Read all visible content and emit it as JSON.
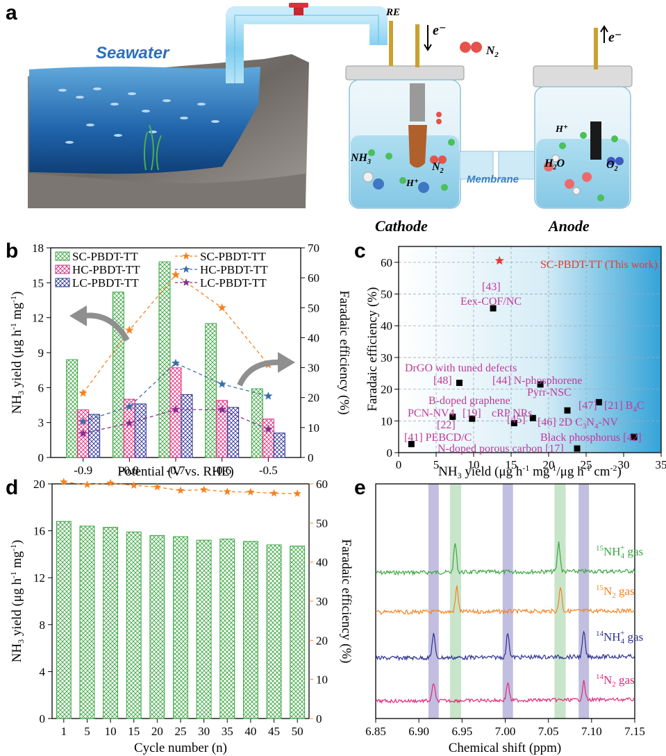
{
  "panel_labels": [
    "a",
    "b",
    "c",
    "d",
    "e"
  ],
  "schematic": {
    "seawater": "Seawater",
    "re": "RE",
    "e_in": "e⁻",
    "e_out": "e⁻",
    "n2_top": "N",
    "n2_top_sub": "2",
    "nh3": "NH",
    "nh3_sub": "3",
    "n2_mid": "N",
    "n2_mid_sub": "2",
    "h_plus_cathode": "H⁺",
    "membrane": "Membrane",
    "h_plus_anode": "H⁺",
    "h2o": "H",
    "h2o_sub": "2",
    "h2o_end": "O",
    "o2": "O",
    "o2_sub": "2",
    "cathode": "Cathode",
    "anode": "Anode"
  },
  "chart_data": [
    {
      "id": "b",
      "type": "bar",
      "categories": [
        "-0.9",
        "-0.8",
        "-0.7",
        "-0.6",
        "-0.5"
      ],
      "series": [
        {
          "name": "SC-PBDT-TT",
          "values": [
            8.4,
            14.2,
            16.8,
            11.5,
            5.9
          ],
          "color": "#3aa640"
        },
        {
          "name": "HC-PBDT-TT",
          "values": [
            4.1,
            5.0,
            7.7,
            4.9,
            3.3
          ],
          "color": "#e0287c"
        },
        {
          "name": "LC-PBDT-TT",
          "values": [
            3.7,
            4.6,
            5.4,
            4.3,
            2.1
          ],
          "color": "#2e3192"
        }
      ],
      "line_series": [
        {
          "name": "SC-PBDT-TT",
          "values": [
            21.5,
            42.5,
            61,
            50,
            31
          ],
          "color": "#f58220"
        },
        {
          "name": "HC-PBDT-TT",
          "values": [
            12,
            17,
            31.5,
            24.5,
            20.5
          ],
          "color": "#3a6fa8"
        },
        {
          "name": "LC-PBDT-TT",
          "values": [
            8,
            11.5,
            16,
            16,
            9.5
          ],
          "color": "#8a2e8f"
        }
      ],
      "xlabel": "Potential (V vs. RHE)",
      "ylabel": "NH3 yield (μg h⁻¹ mg⁻¹)",
      "ylabel_parts": [
        "NH",
        "3",
        " yield (μg h",
        "-1",
        " mg",
        "-1",
        ")"
      ],
      "y2label": "Faradaic efficiency (%)",
      "ylim": [
        0,
        18
      ],
      "yticks": [
        "0",
        "3",
        "6",
        "9",
        "12",
        "15",
        "18"
      ],
      "y2lim": [
        0,
        70
      ],
      "y2ticks": [
        "0",
        "10",
        "20",
        "30",
        "40",
        "50",
        "60",
        "70"
      ]
    },
    {
      "id": "c",
      "type": "scatter",
      "x": [
        1.7,
        7.2,
        8.1,
        9.8,
        12.6,
        15.4,
        17.9,
        18.9,
        22.5,
        23.8,
        26.7,
        31.4,
        12.8
      ],
      "y": [
        2.7,
        11.3,
        22.0,
        10.7,
        45.5,
        9.3,
        10.9,
        21.5,
        13.3,
        1.3,
        15.9,
        5.0,
        60.5
      ],
      "xlabel": "NH3 yield (μg h⁻¹ mg⁻¹/μg h⁻¹ cm⁻²)",
      "xlabel_parts": [
        "NH",
        "3",
        " yield (μg h",
        "-1",
        " mg",
        "-1",
        "/μg h",
        "-1",
        " cm",
        "-2",
        ")"
      ],
      "ylabel": "Faradaic efficiency (%)",
      "xlim": [
        0,
        35
      ],
      "xticks": [
        "0",
        "5",
        "10",
        "15",
        "20",
        "25",
        "30",
        "35"
      ],
      "ylim": [
        0,
        65
      ],
      "yticks": [
        "0",
        "10",
        "20",
        "30",
        "40",
        "50",
        "60"
      ],
      "labels": {
        "this_work": "SC-PBDT-TT (This work)",
        "ref43": "[43]",
        "eexcof": "Eex-COF/NC",
        "drgo": "DrGO with tuned defects",
        "ref48": "[48]",
        "nphos": "[44] N-phosphorene",
        "bdoped": "B-doped graphene",
        "pyrr": "Pyrr-NSC",
        "pcn": "PCN-NV4",
        "ref19": "[19]",
        "crp": "cRP NRs",
        "ref47": "[47]",
        "b4c": "[21] B",
        "b4c_sub": "4",
        "b4c_end": "C",
        "ref22": "[22]",
        "ref45": "[45]",
        "c3n4": "[46] 2D C",
        "c3n4_s1": "3",
        "c3n4_m": "N",
        "c3n4_s2": "4",
        "c3n4_end": "-NV",
        "pebcd": "[41] PEBCD/C",
        "bp": "Black phosphorus [42]",
        "npc": "N-doped porous carbon [17]"
      }
    },
    {
      "id": "d",
      "type": "bar",
      "categories": [
        "1",
        "5",
        "10",
        "15",
        "20",
        "25",
        "30",
        "35",
        "40",
        "45",
        "50"
      ],
      "values": [
        16.8,
        16.4,
        16.3,
        15.9,
        15.6,
        15.5,
        15.2,
        15.3,
        15.1,
        14.8,
        14.7
      ],
      "line_values": [
        60.5,
        59.8,
        60.2,
        59.6,
        59.2,
        58.3,
        58.5,
        58.0,
        57.9,
        57.6,
        57.5
      ],
      "xlabel": "Cycle number (n)",
      "ylabel": "NH3 yield (μg h⁻¹ mg⁻¹)",
      "ylabel_parts": [
        "NH",
        "3",
        " yield (μg h",
        "-1",
        " mg",
        "-1",
        ")"
      ],
      "y2label": "Faradaic efficiency (%)",
      "ylim": [
        0,
        20
      ],
      "yticks": [
        "0",
        "4",
        "8",
        "12",
        "16",
        "20"
      ],
      "y2lim": [
        0,
        60
      ],
      "y2ticks": [
        "0",
        "10",
        "20",
        "30",
        "40",
        "50",
        "60"
      ],
      "bar_color": "#3aa640",
      "line_color": "#f58220"
    },
    {
      "id": "e",
      "type": "line",
      "xlabel": "Chemical shift (ppm)",
      "xlim": [
        6.85,
        7.15
      ],
      "xticks": [
        "6.85",
        "6.90",
        "6.95",
        "7.00",
        "7.05",
        "7.10",
        "7.15"
      ],
      "series": [
        {
          "name_pre": "15",
          "name": "NH",
          "name_sub": "4",
          "name_sup": "+",
          "name_end": " gas",
          "color": "#3aa640",
          "peaks": [
            6.942,
            7.062
          ],
          "height": 42,
          "noise": 3
        },
        {
          "name_pre": "15",
          "name": "N",
          "name_sub": "2",
          "name_sup": "",
          "name_end": " gas",
          "color": "#f58220",
          "peaks": [
            6.944,
            7.064
          ],
          "height": 36,
          "noise": 3
        },
        {
          "name_pre": "14",
          "name": "NH",
          "name_sub": "4",
          "name_sup": "+",
          "name_end": " gas",
          "color": "#2e3192",
          "peaks": [
            6.917,
            7.003,
            7.091
          ],
          "height": 36,
          "noise": 3
        },
        {
          "name_pre": "14",
          "name": "N",
          "name_sub": "2",
          "name_sup": "",
          "name_end": " gas",
          "color": "#e0287c",
          "peaks": [
            6.917,
            7.003,
            7.091
          ],
          "height": 26,
          "noise": 2.5
        }
      ],
      "bands": [
        {
          "from": 6.911,
          "to": 6.923,
          "color": "#b7b3d9"
        },
        {
          "from": 6.936,
          "to": 6.949,
          "color": "#bfe0c0"
        },
        {
          "from": 6.997,
          "to": 7.009,
          "color": "#b7b3d9"
        },
        {
          "from": 7.057,
          "to": 7.07,
          "color": "#bfe0c0"
        },
        {
          "from": 7.085,
          "to": 7.097,
          "color": "#b7b3d9"
        }
      ]
    }
  ]
}
